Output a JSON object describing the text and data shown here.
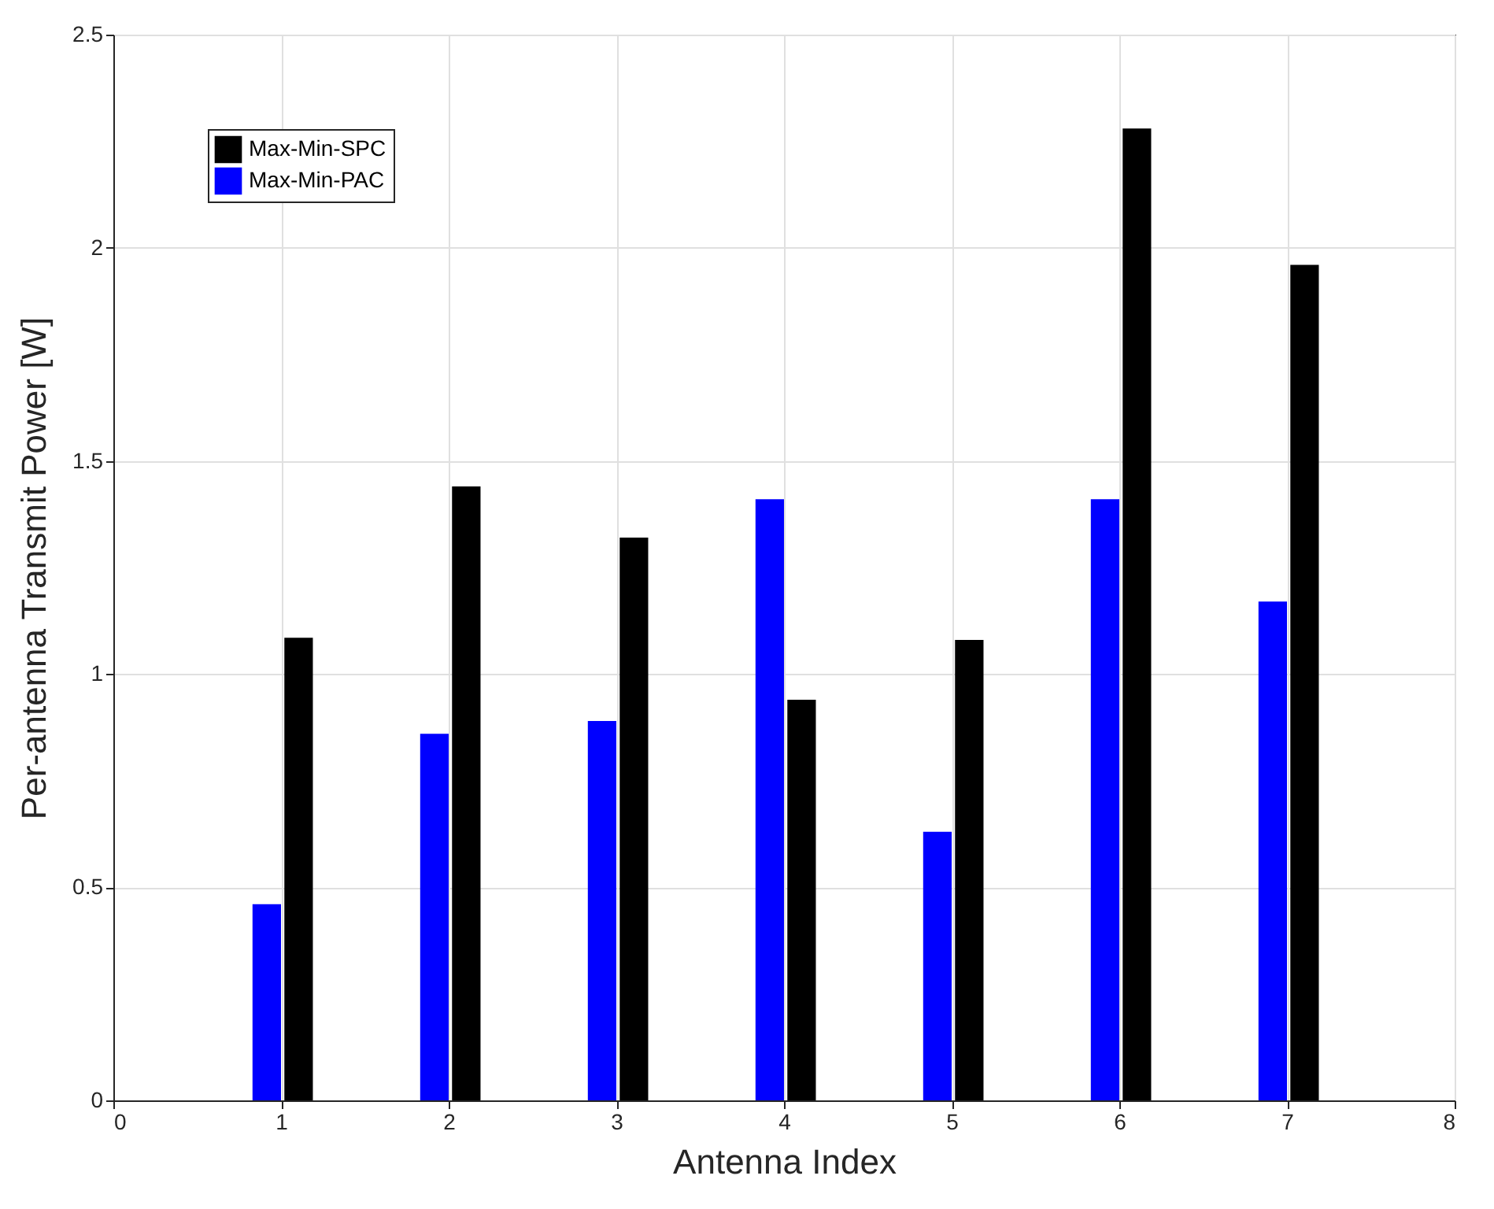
{
  "chart_data": {
    "type": "bar",
    "xlabel": "Antenna Index",
    "ylabel": "Per-antenna Transmit Power [W]",
    "x": [
      1,
      2,
      3,
      4,
      5,
      6,
      7
    ],
    "series": [
      {
        "name": "Max-Min-SPC",
        "color": "#000000",
        "values": [
          1.085,
          1.44,
          1.32,
          0.94,
          1.08,
          2.28,
          1.96
        ]
      },
      {
        "name": "Max-Min-PAC",
        "color": "#0000ff",
        "values": [
          0.46,
          0.86,
          0.89,
          1.41,
          0.63,
          1.41,
          1.17
        ]
      }
    ],
    "xlim": [
      0,
      8
    ],
    "xticks": [
      0,
      1,
      2,
      3,
      4,
      5,
      6,
      7,
      8
    ],
    "ylim": [
      0,
      2.5
    ],
    "yticks": [
      0,
      0.5,
      1,
      1.5,
      2,
      2.5
    ],
    "grid": true,
    "legend": "top left"
  }
}
